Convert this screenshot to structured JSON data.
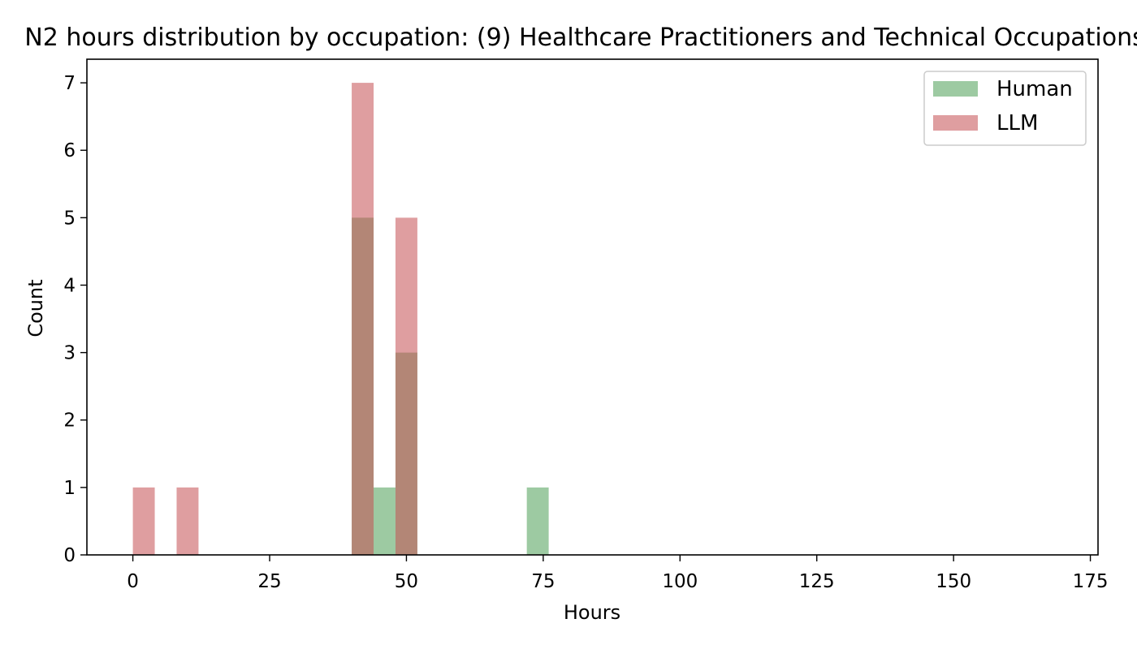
{
  "chart_data": {
    "type": "histogram",
    "title": "N2 hours distribution by occupation: (9) Healthcare Practitioners and Technical Occupations",
    "xlabel": "Hours",
    "ylabel": "Count",
    "xlim": [
      -8.4,
      176.4
    ],
    "ylim": [
      0,
      7.35
    ],
    "xticks": [
      "0",
      "25",
      "50",
      "75",
      "100",
      "125",
      "150",
      "175"
    ],
    "yticks": [
      "0",
      "1",
      "2",
      "3",
      "4",
      "5",
      "6",
      "7"
    ],
    "bin_width": 4,
    "legend_position": "top-right",
    "series": [
      {
        "name": "Human",
        "color": "#4c9f55",
        "bins": [
          {
            "x0": 40,
            "x1": 44,
            "count": 5
          },
          {
            "x0": 44,
            "x1": 48,
            "count": 1
          },
          {
            "x0": 48,
            "x1": 52,
            "count": 3
          },
          {
            "x0": 72,
            "x1": 76,
            "count": 1
          }
        ]
      },
      {
        "name": "LLM",
        "color": "#c44e52",
        "bins": [
          {
            "x0": 0,
            "x1": 4,
            "count": 1
          },
          {
            "x0": 8,
            "x1": 12,
            "count": 1
          },
          {
            "x0": 40,
            "x1": 44,
            "count": 7
          },
          {
            "x0": 48,
            "x1": 52,
            "count": 5
          }
        ]
      }
    ]
  }
}
